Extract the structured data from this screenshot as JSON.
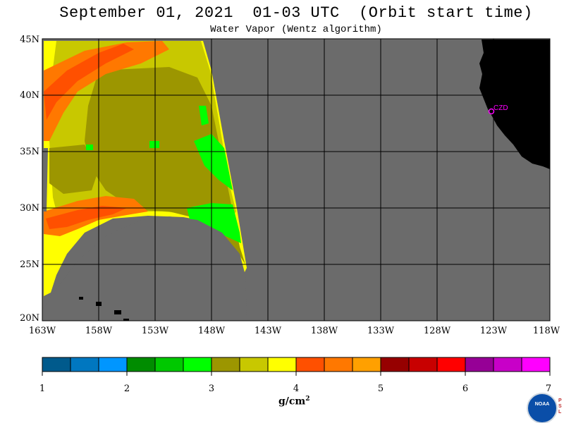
{
  "header": {
    "title": "September 01, 2021  01-03 UTC  (Orbit start time)",
    "subtitle": "Water Vapor (Wentz algorithm)"
  },
  "map": {
    "lat_ticks": [
      "45N",
      "40N",
      "35N",
      "30N",
      "25N",
      "20N"
    ],
    "lon_ticks": [
      "163W",
      "158W",
      "153W",
      "148W",
      "143W",
      "138W",
      "133W",
      "128W",
      "123W",
      "118W"
    ],
    "extent": {
      "lat_min": 20,
      "lat_max": 45,
      "lon_min": -163,
      "lon_max": -118
    },
    "station_label": "CZD",
    "colors": {
      "no_data": "#6b6b6b",
      "land": "#000000",
      "grid": "#000000",
      "station": "#ff00ff"
    }
  },
  "colorbar": {
    "unit_label": "g/cm",
    "unit_exponent": "2",
    "tick_labels": [
      "1",
      "2",
      "3",
      "4",
      "5",
      "6",
      "7"
    ],
    "range": [
      1,
      7
    ],
    "colors": [
      "#005a8c",
      "#0077c0",
      "#0096ff",
      "#008c00",
      "#00c800",
      "#00ff00",
      "#9c9600",
      "#c8c800",
      "#ffff00",
      "#ff5000",
      "#ff7800",
      "#ffa000",
      "#960000",
      "#c80000",
      "#ff0000",
      "#960096",
      "#c800c8",
      "#ff00ff"
    ]
  },
  "logo": {
    "name": "NOAA",
    "side_text": "PSL"
  }
}
